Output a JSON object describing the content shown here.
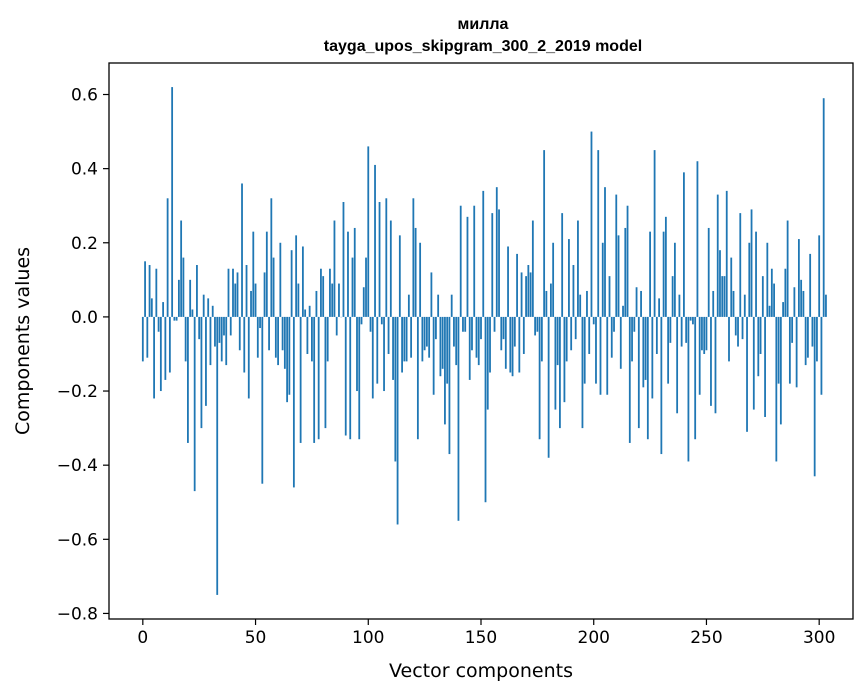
{
  "chart_data": {
    "type": "bar",
    "title": "милла",
    "subtitle": "tayga_upos_skipgram_300_2_2019 model",
    "xlabel": "Vector components",
    "ylabel": "Components values",
    "xlim": [
      -15,
      315
    ],
    "ylim": [
      -0.815,
      0.685
    ],
    "x_ticks": [
      0,
      50,
      100,
      150,
      200,
      250,
      300
    ],
    "y_ticks": [
      -0.8,
      -0.6,
      -0.4,
      -0.2,
      0.0,
      0.2,
      0.4,
      0.6
    ],
    "y_tick_labels": [
      "−0.8",
      "−0.6",
      "−0.4",
      "−0.2",
      "0.0",
      "0.2",
      "0.4",
      "0.6"
    ],
    "bar_color": "#1f77b4",
    "grid": false,
    "values": [
      -0.12,
      0.15,
      -0.11,
      0.14,
      0.05,
      -0.22,
      0.13,
      -0.04,
      -0.2,
      0.04,
      -0.17,
      0.32,
      -0.15,
      0.62,
      -0.01,
      -0.01,
      0.1,
      0.26,
      0.16,
      -0.12,
      -0.34,
      0.1,
      0.02,
      -0.47,
      0.14,
      -0.06,
      -0.3,
      0.06,
      -0.24,
      0.05,
      -0.13,
      0.03,
      -0.08,
      -0.75,
      -0.07,
      -0.12,
      -0.05,
      -0.13,
      0.13,
      -0.05,
      0.13,
      0.09,
      0.12,
      -0.09,
      0.36,
      -0.15,
      0.14,
      -0.22,
      0.07,
      0.23,
      0.09,
      -0.11,
      -0.03,
      -0.45,
      0.12,
      0.23,
      -0.09,
      0.32,
      0.16,
      -0.11,
      -0.13,
      0.2,
      -0.09,
      -0.14,
      -0.23,
      -0.21,
      0.18,
      -0.46,
      0.22,
      0.09,
      -0.34,
      0.19,
      0.02,
      -0.1,
      0.03,
      -0.12,
      -0.34,
      0.07,
      -0.33,
      0.13,
      0.11,
      -0.3,
      -0.12,
      0.13,
      0.09,
      0.26,
      -0.05,
      0.09,
      0.0,
      0.31,
      -0.32,
      0.23,
      -0.33,
      0.16,
      0.24,
      -0.2,
      -0.33,
      -0.02,
      0.08,
      0.16,
      0.46,
      -0.04,
      -0.22,
      0.41,
      -0.18,
      0.31,
      -0.02,
      -0.2,
      0.32,
      -0.1,
      0.26,
      -0.17,
      -0.39,
      -0.56,
      0.22,
      -0.15,
      -0.12,
      -0.12,
      0.06,
      -0.11,
      0.32,
      0.24,
      -0.33,
      0.2,
      -0.12,
      -0.09,
      -0.08,
      -0.11,
      0.12,
      -0.21,
      -0.06,
      0.06,
      -0.16,
      -0.14,
      -0.29,
      -0.18,
      -0.37,
      0.06,
      -0.08,
      -0.13,
      -0.55,
      0.3,
      -0.04,
      -0.04,
      0.27,
      -0.17,
      -0.09,
      0.3,
      -0.11,
      -0.13,
      -0.06,
      0.34,
      -0.5,
      -0.25,
      -0.15,
      0.28,
      -0.04,
      0.35,
      0.29,
      -0.09,
      -0.06,
      -0.14,
      0.19,
      -0.15,
      -0.16,
      -0.08,
      0.17,
      -0.15,
      0.12,
      -0.1,
      0.11,
      0.14,
      0.12,
      0.26,
      -0.05,
      -0.04,
      -0.33,
      -0.12,
      0.45,
      0.07,
      -0.38,
      0.09,
      0.2,
      -0.25,
      -0.13,
      -0.3,
      0.28,
      -0.23,
      -0.12,
      0.21,
      -0.09,
      0.14,
      -0.06,
      0.26,
      0.06,
      -0.3,
      -0.18,
      0.07,
      -0.1,
      0.5,
      -0.02,
      -0.18,
      0.45,
      -0.21,
      0.2,
      0.35,
      -0.21,
      0.11,
      -0.11,
      -0.04,
      0.33,
      0.22,
      -0.14,
      0.03,
      0.24,
      0.3,
      -0.34,
      -0.12,
      -0.04,
      0.08,
      -0.3,
      0.07,
      -0.19,
      -0.17,
      -0.33,
      0.23,
      -0.22,
      0.45,
      -0.1,
      0.05,
      -0.37,
      0.23,
      0.27,
      -0.18,
      -0.07,
      0.11,
      0.2,
      -0.26,
      0.06,
      -0.08,
      0.39,
      -0.07,
      -0.39,
      -0.01,
      -0.02,
      -0.33,
      0.42,
      -0.21,
      -0.09,
      -0.1,
      -0.09,
      0.24,
      -0.24,
      0.07,
      -0.26,
      0.33,
      0.18,
      0.11,
      0.11,
      0.34,
      -0.12,
      0.16,
      0.07,
      -0.05,
      -0.08,
      0.28,
      -0.06,
      0.06,
      -0.31,
      0.2,
      0.29,
      -0.25,
      0.23,
      -0.16,
      -0.1,
      0.11,
      -0.27,
      0.2,
      0.03,
      0.13,
      0.09,
      -0.39,
      -0.18,
      -0.29,
      0.04,
      0.13,
      0.26,
      -0.18,
      -0.07,
      0.08,
      -0.19,
      0.21,
      0.1,
      0.07,
      -0.13,
      -0.11,
      0.17,
      -0.08,
      -0.43,
      -0.12,
      0.22,
      -0.21,
      0.59,
      0.06
    ]
  }
}
